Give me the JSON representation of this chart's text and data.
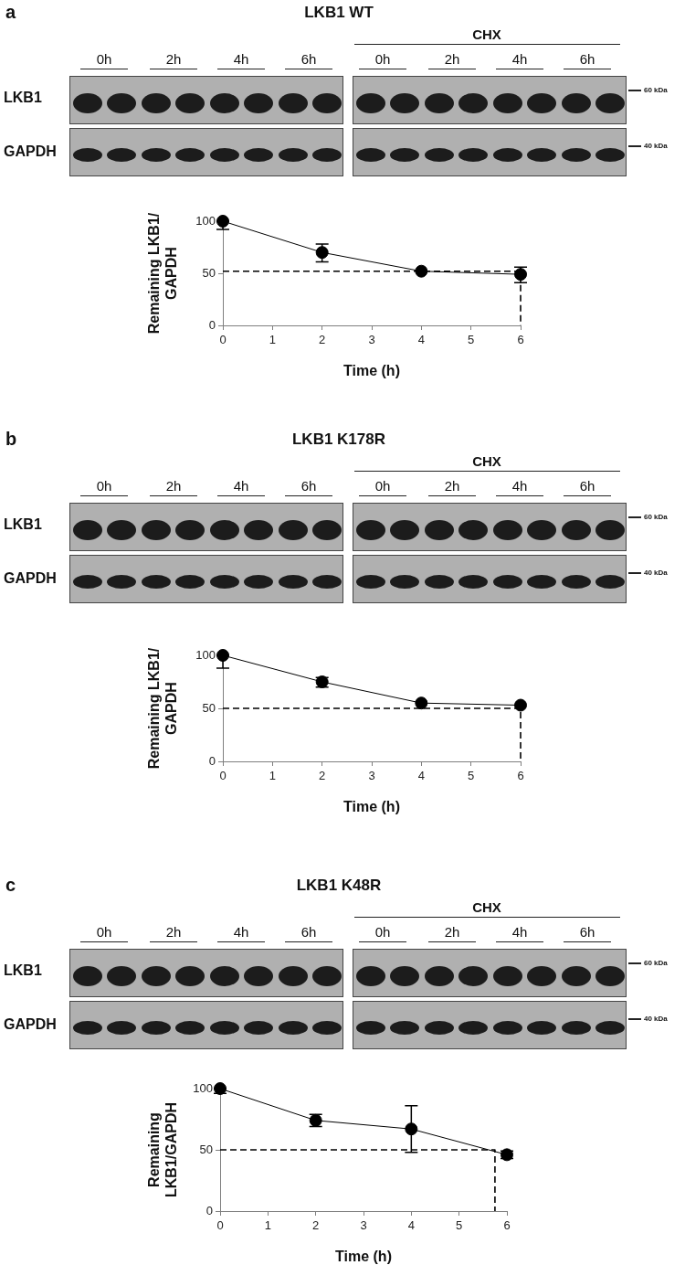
{
  "chart_data": [
    {
      "type": "line",
      "title": "LKB1 WT",
      "xlabel": "Time (h)",
      "ylabel": "Remaining LKB1/ GAPDH",
      "annotations": [
        "a",
        "CHX",
        "0h",
        "2h",
        "4h",
        "6h",
        "0h",
        "2h",
        "4h",
        "6h",
        "LKB1",
        "GAPDH",
        "60 kDa",
        "40 kDa"
      ],
      "marker": "circle",
      "series": [
        {
          "color": "#000000",
          "x": [
            0,
            2,
            4,
            6
          ],
          "values": [
            100,
            70,
            52,
            49
          ],
          "errors": [
            [
              92,
              100
            ],
            [
              61,
              78
            ],
            null,
            [
              41,
              56
            ]
          ]
        },
        {
          "color": "#000000",
          "x": [
            0,
            6,
            6
          ],
          "values": [
            52,
            52,
            0
          ],
          "marker": "none",
          "line_style": "dashed"
        }
      ],
      "xlim": [
        0,
        6
      ],
      "ylim": [
        0,
        100
      ],
      "xticks": [
        0,
        1,
        2,
        3,
        4,
        5,
        6
      ],
      "yticks": [
        0,
        50,
        100
      ]
    },
    {
      "type": "line",
      "title": "LKB1 K178R",
      "xlabel": "Time (h)",
      "ylabel": "Remaining LKB1/ GAPDH",
      "annotations": [
        "b",
        "CHX",
        "0h",
        "2h",
        "4h",
        "6h",
        "0h",
        "2h",
        "4h",
        "6h",
        "LKB1",
        "GAPDH",
        "60 kDa",
        "40 kDa"
      ],
      "marker": "circle",
      "series": [
        {
          "color": "#000000",
          "x": [
            0,
            2,
            4,
            6
          ],
          "values": [
            100,
            75,
            55,
            53
          ],
          "errors": [
            [
              88,
              100
            ],
            [
              70,
              79
            ],
            null,
            null
          ]
        },
        {
          "color": "#000000",
          "x": [
            0,
            6,
            6
          ],
          "values": [
            50,
            50,
            0
          ],
          "marker": "none",
          "line_style": "dashed"
        }
      ],
      "xlim": [
        0,
        6
      ],
      "ylim": [
        0,
        100
      ],
      "xticks": [
        0,
        1,
        2,
        3,
        4,
        5,
        6
      ],
      "yticks": [
        0,
        50,
        100
      ]
    },
    {
      "type": "line",
      "title": "LKB1 K48R",
      "xlabel": "Time (h)",
      "ylabel": "Remaining LKB1/GAPDH",
      "annotations": [
        "c",
        "CHX",
        "0h",
        "2h",
        "4h",
        "6h",
        "0h",
        "2h",
        "4h",
        "6h",
        "LKB1",
        "GAPDH",
        "60 kDa",
        "40 kDa"
      ],
      "marker": "circle",
      "series": [
        {
          "color": "#000000",
          "x": [
            0,
            2,
            4,
            6
          ],
          "values": [
            100,
            74,
            67,
            46
          ],
          "errors": [
            [
              96,
              100
            ],
            [
              69,
              79
            ],
            [
              48,
              86
            ],
            [
              43,
              49
            ]
          ]
        },
        {
          "color": "#000000",
          "x": [
            0,
            5.75,
            5.75
          ],
          "values": [
            50,
            50,
            0
          ],
          "marker": "none",
          "line_style": "dashed"
        }
      ],
      "xlim": [
        0,
        6
      ],
      "ylim": [
        0,
        100
      ],
      "xticks": [
        0,
        1,
        2,
        3,
        4,
        5,
        6
      ],
      "yticks": [
        0,
        50,
        100
      ]
    }
  ]
}
